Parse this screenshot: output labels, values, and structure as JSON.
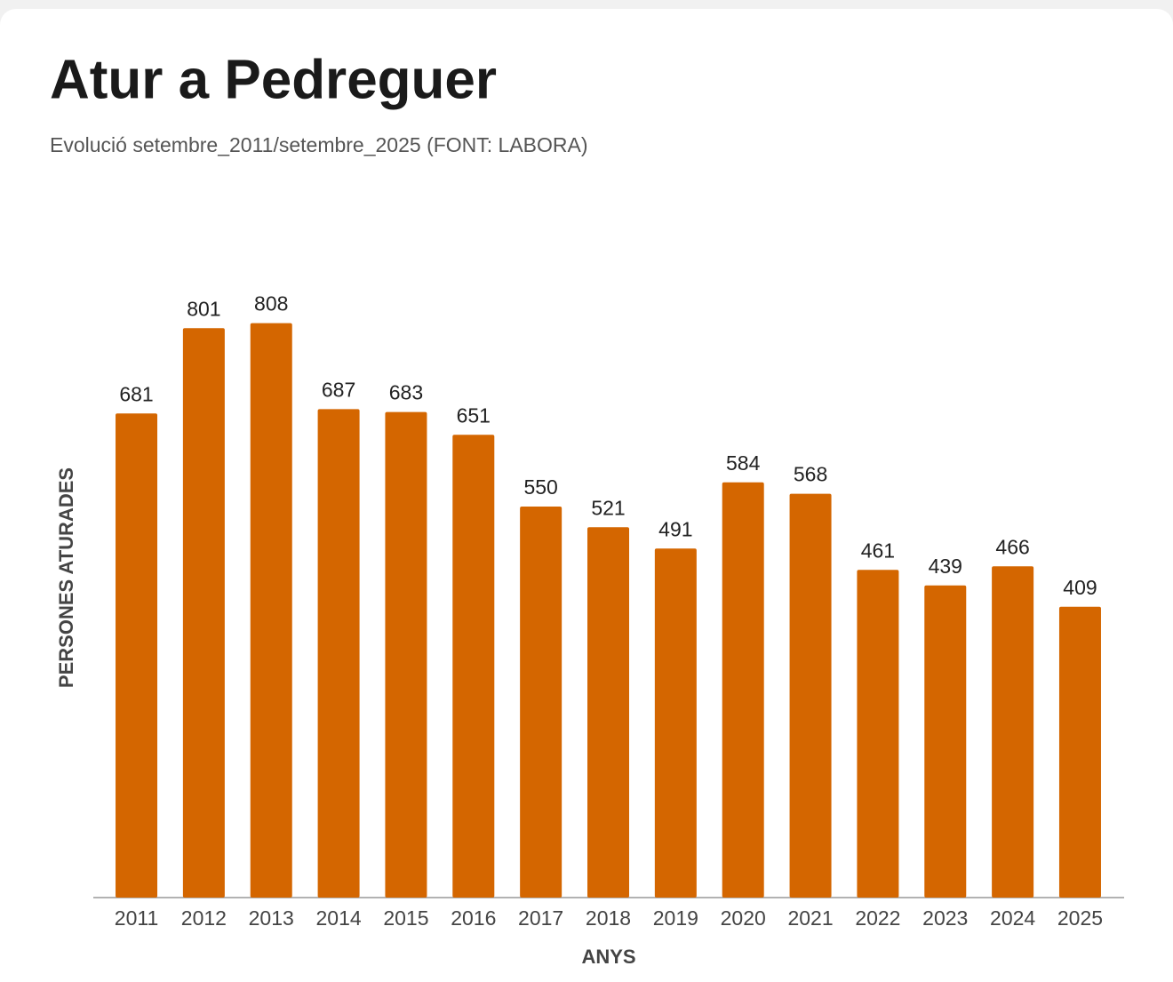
{
  "chart_data": {
    "type": "bar",
    "title": "Atur a Pedreguer",
    "subtitle": "Evolució setembre_2011/setembre_2025 (FONT: LABORA)",
    "x_label": "ANYS",
    "y_label": "PERSONES ATURADES",
    "categories": [
      "2011",
      "2012",
      "2013",
      "2014",
      "2015",
      "2016",
      "2017",
      "2018",
      "2019",
      "2020",
      "2021",
      "2022",
      "2023",
      "2024",
      "2025"
    ],
    "values": [
      681,
      801,
      808,
      687,
      683,
      651,
      550,
      521,
      491,
      584,
      568,
      461,
      439,
      466,
      409
    ],
    "color": "#d46600",
    "ylim": [
      0,
      900
    ],
    "grid": false
  }
}
